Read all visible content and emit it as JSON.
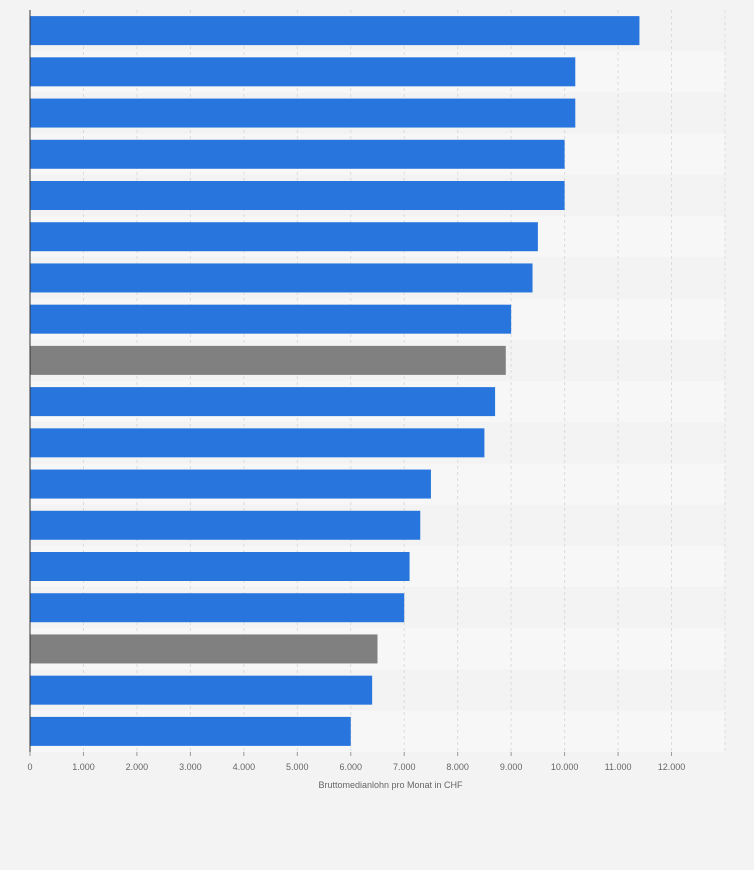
{
  "chart_data": {
    "type": "bar",
    "orientation": "horizontal",
    "title": "",
    "xlabel": "Bruttomedianlohn pro Monat in CHF",
    "ylabel": "",
    "xlim": [
      0,
      13000
    ],
    "ticks": [
      0,
      1000,
      2000,
      3000,
      4000,
      5000,
      6000,
      7000,
      8000,
      9000,
      10000,
      11000,
      12000
    ],
    "tick_labels": [
      "0",
      "1.000",
      "2.000",
      "3.000",
      "4.000",
      "5.000",
      "6.000",
      "7.000",
      "8.000",
      "9.000",
      "10.000",
      "11.000",
      "12.000"
    ],
    "grid": true,
    "values": [
      11400,
      10200,
      10200,
      10000,
      10000,
      9500,
      9400,
      9000,
      8900,
      8700,
      8500,
      7500,
      7300,
      7100,
      7000,
      6500,
      6400,
      6000
    ],
    "highlight": [
      false,
      false,
      false,
      false,
      false,
      false,
      false,
      false,
      true,
      false,
      false,
      false,
      false,
      false,
      false,
      true,
      false,
      false
    ]
  },
  "colors": {
    "bar": "#2876dd",
    "highlight": "#808080",
    "band_dark": "#f3f3f3",
    "band_light": "#f7f7f7",
    "gridline": "#dcdcdc",
    "axis": "#333333"
  }
}
